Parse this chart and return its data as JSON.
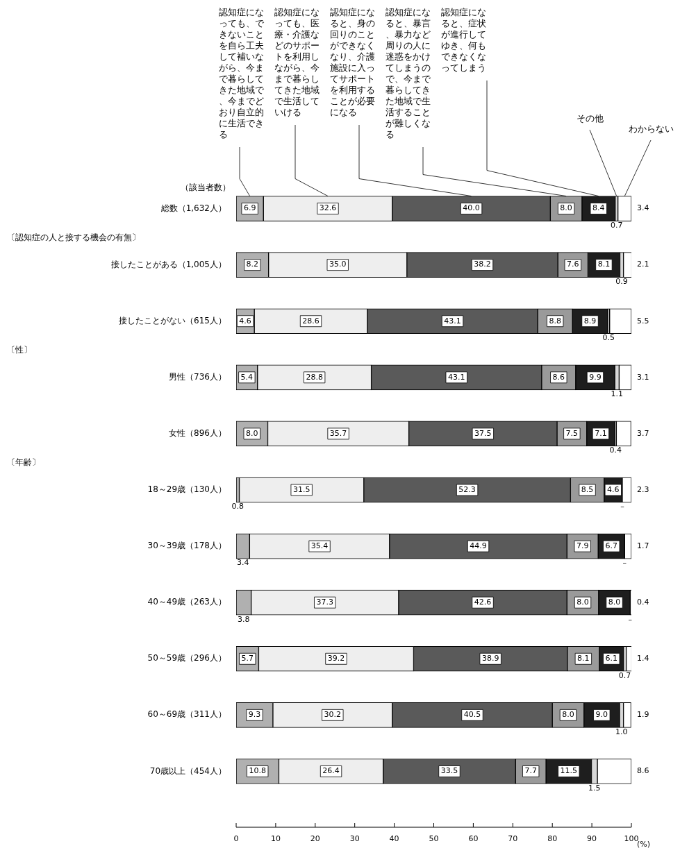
{
  "chart_data": {
    "type": "bar",
    "orientation": "horizontal",
    "stacked": true,
    "legend": "top",
    "xlabel": "(%)",
    "xlim": [
      0,
      100
    ],
    "xticks": [
      0,
      10,
      20,
      30,
      40,
      50,
      60,
      70,
      80,
      90,
      100
    ],
    "grid": false,
    "annotations": [
      "（該当者数）",
      "〔認知症の人と接する機会の有無〕",
      "〔性〕",
      "〔年齢〕"
    ],
    "categories": [
      "総数（1,632人）",
      "接したことがある（1,005人）",
      "接したことがない（615人）",
      "男性（736人）",
      "女性（896人）",
      "18～29歳（130人）",
      "30～39歳（178人）",
      "40～49歳（263人）",
      "50～59歳（296人）",
      "60～69歳（311人）",
      "70歳以上（454人）"
    ],
    "series": [
      {
        "name": "認知症になっても、できないことを自ら工夫して補いながら、今まで暮らしてきた地域で、今までどおり自立的に生活できる",
        "color": "#b0b0b0",
        "values": [
          6.9,
          8.2,
          4.6,
          5.4,
          8.0,
          0.8,
          3.4,
          3.8,
          5.7,
          9.3,
          10.8
        ],
        "value_labels": [
          "6.9",
          "8.2",
          "4.6",
          "5.4",
          "8.0",
          "0.8",
          "3.4",
          "3.8",
          "5.7",
          "9.3",
          "10.8"
        ]
      },
      {
        "name": "認知症になっても、医療・介護などのサポートを利用しながら、今まで暮らしてきた地域で生活していける",
        "color": "#eeeeee",
        "values": [
          32.6,
          35.0,
          28.6,
          28.8,
          35.7,
          31.5,
          35.4,
          37.3,
          39.2,
          30.2,
          26.4
        ],
        "value_labels": [
          "32.6",
          "35.0",
          "28.6",
          "28.8",
          "35.7",
          "31.5",
          "35.4",
          "37.3",
          "39.2",
          "30.2",
          "26.4"
        ]
      },
      {
        "name": "認知症になると、身の回りのことができなくなり、介護施設に入ってサポートを利用することが必要になる",
        "color": "#5a5a5a",
        "values": [
          40.0,
          38.2,
          43.1,
          43.1,
          37.5,
          52.3,
          44.9,
          42.6,
          38.9,
          40.5,
          33.5
        ],
        "value_labels": [
          "40.0",
          "38.2",
          "43.1",
          "43.1",
          "37.5",
          "52.3",
          "44.9",
          "42.6",
          "38.9",
          "40.5",
          "33.5"
        ]
      },
      {
        "name": "認知症になると、暴言、暴力など周りの人に迷惑をかけてしまうので、今まで暮らしてきた地域で生活することが難しくなる",
        "color": "#9a9a9a",
        "values": [
          8.0,
          7.6,
          8.8,
          8.6,
          7.5,
          8.5,
          7.9,
          8.0,
          8.1,
          8.0,
          7.7
        ],
        "value_labels": [
          "8.0",
          "7.6",
          "8.8",
          "8.6",
          "7.5",
          "8.5",
          "7.9",
          "8.0",
          "8.1",
          "8.0",
          "7.7"
        ]
      },
      {
        "name": "認知症になると、症状が進行してゆき、何もできなくなってしまう",
        "color": "#1e1e1e",
        "values": [
          8.4,
          8.1,
          8.9,
          9.9,
          7.1,
          4.6,
          6.7,
          8.0,
          6.1,
          9.0,
          11.5
        ],
        "value_labels": [
          "8.4",
          "8.1",
          "8.9",
          "9.9",
          "7.1",
          "4.6",
          "6.7",
          "8.0",
          "6.1",
          "9.0",
          "11.5"
        ]
      },
      {
        "name": "その他",
        "color": "#d8d8d8",
        "values": [
          0.7,
          0.9,
          0.5,
          1.1,
          0.4,
          0,
          0,
          0,
          0.7,
          1.0,
          1.5
        ],
        "value_labels": [
          "0.7",
          "0.9",
          "0.5",
          "1.1",
          "0.4",
          "–",
          "–",
          "–",
          "0.7",
          "1.0",
          "1.5"
        ]
      },
      {
        "name": "わからない",
        "color": "#ffffff",
        "values": [
          3.4,
          2.1,
          5.5,
          3.1,
          3.7,
          2.3,
          1.7,
          0.4,
          1.4,
          1.9,
          8.6
        ],
        "value_labels": [
          "3.4",
          "2.1",
          "5.5",
          "3.1",
          "3.7",
          "2.3",
          "1.7",
          "0.4",
          "1.4",
          "1.9",
          "8.6"
        ]
      }
    ]
  }
}
